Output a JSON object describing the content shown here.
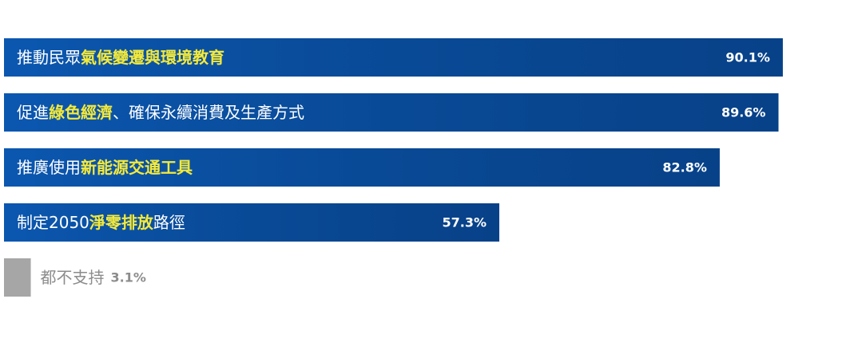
{
  "chart_data": {
    "type": "bar",
    "orientation": "horizontal",
    "categories": [
      [
        "推動民眾",
        "氣候變遷與環境教育"
      ],
      [
        "促進",
        "綠色經濟",
        "、確保永續消費及生產方式"
      ],
      [
        "推廣使用",
        "新能源交通工具"
      ],
      [
        "制定2050",
        "淨零排放",
        "路徑"
      ],
      [
        "都不支持"
      ]
    ],
    "values": [
      90.1,
      89.6,
      82.8,
      57.3,
      3.1
    ],
    "value_labels": [
      "90.1%",
      "89.6%",
      "82.8%",
      "57.3%",
      "3.1%"
    ],
    "colors": [
      "#0b57b0",
      "#0b57b0",
      "#0b57b0",
      "#0b57b0",
      "#a6a6a6"
    ],
    "highlight_color": "#f5ea3a"
  }
}
